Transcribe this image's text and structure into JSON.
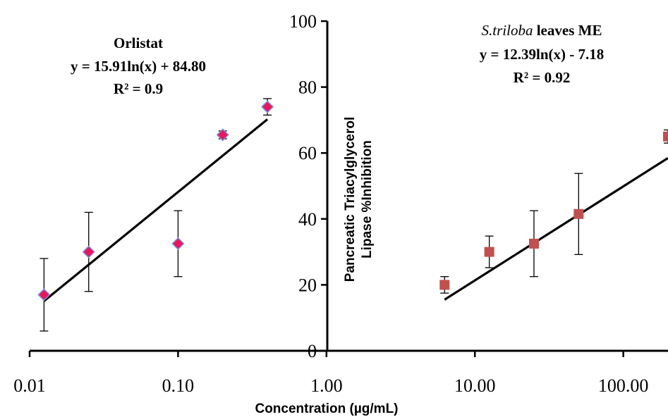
{
  "chart_data": {
    "type": "scatter",
    "x_scale": "log",
    "x_ticks": [
      "0.01",
      "0.10",
      "1.00",
      "10.00",
      "100.00"
    ],
    "x_tick_values": [
      0.01,
      0.1,
      1,
      10,
      100
    ],
    "xlim": [
      0.01,
      200
    ],
    "ylim": [
      0,
      100
    ],
    "y_ticks": [
      "0",
      "20",
      "40",
      "60",
      "80",
      "100"
    ],
    "y_tick_values": [
      0,
      20,
      40,
      60,
      80,
      100
    ],
    "xlabel": "Concentration (µg/mL)",
    "ylabel_line1": "Pancreatic Triacylglycerol",
    "ylabel_line2": "Lipase %Inhibition",
    "grid": false,
    "series": [
      {
        "name": "Orlistat",
        "marker": "diamond",
        "color": "#e8175d",
        "edge_color": "#7b8fd9",
        "x": [
          0.0125,
          0.025,
          0.1,
          0.2,
          0.4
        ],
        "y": [
          17.0,
          30.0,
          32.5,
          65.5,
          74.0
        ],
        "err": [
          11.0,
          12.0,
          10.0,
          1.2,
          2.5
        ],
        "fit": {
          "a": 15.91,
          "b": 84.8,
          "x_range": [
            0.0125,
            0.4
          ]
        },
        "annotation": {
          "title": "Orlistat",
          "equation": "y = 15.91ln(x) + 84.80",
          "r2": "R² = 0.9"
        }
      },
      {
        "name": "S.triloba leaves ME",
        "marker": "square",
        "color": "#c0504d",
        "edge_color": "#c0504d",
        "x": [
          6.25,
          12.5,
          25,
          50,
          200
        ],
        "y": [
          20.0,
          30.0,
          32.5,
          41.5,
          65.0
        ],
        "err": [
          2.5,
          4.8,
          10.0,
          12.3,
          2.0
        ],
        "fit": {
          "a": 12.39,
          "b": -7.18,
          "x_range": [
            6.25,
            200
          ]
        },
        "annotation": {
          "title_italic": "S.triloba",
          "title_rest": " leaves ME",
          "equation": "y = 12.39ln(x) - 7.18",
          "r2": "R² = 0.92"
        }
      }
    ]
  }
}
